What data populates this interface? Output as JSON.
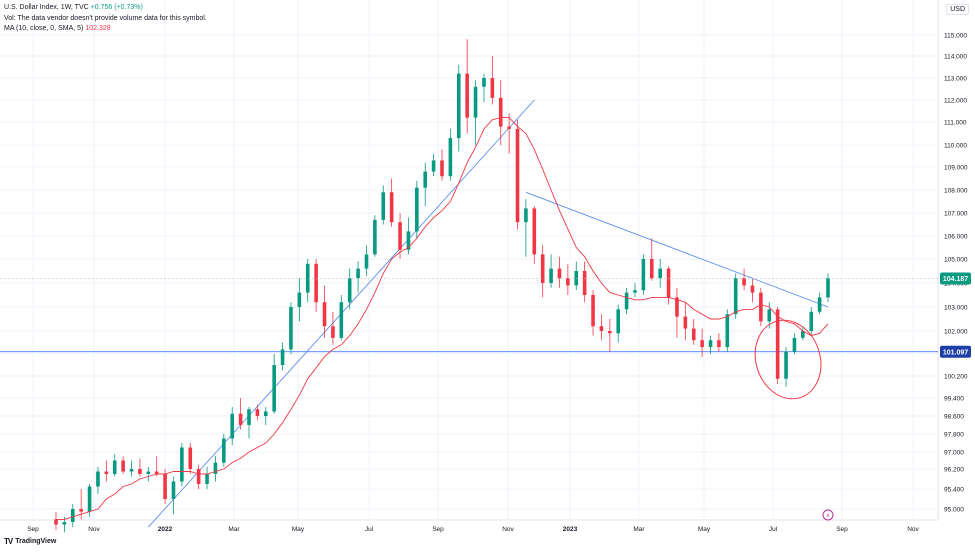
{
  "legend": {
    "symbol_line": "U.S. Dollar Index, 1W, TVC",
    "change": "+0.756 (+0.73%)",
    "vol_line": "Vol: The data vendor doesn't provide volume data for this symbol.",
    "ma_line": "MA (10, close, 0, SMA, 5)",
    "ma_value": "102.328"
  },
  "currency_button": "USD",
  "brand": {
    "logo": "TV",
    "name": "TradingView"
  },
  "colors": {
    "up": "#089981",
    "down": "#f23645",
    "trendline": "#5b8def",
    "ma": "#f23645",
    "hline": "#2962ff",
    "last_price_bg": "#089981",
    "hline_price_bg": "#1e3ea8"
  },
  "price_axis": {
    "ticks": [
      "115.000",
      "114.000",
      "113.000",
      "112.000",
      "111.000",
      "110.000",
      "109.000",
      "108.000",
      "107.000",
      "106.000",
      "105.000",
      "104.000",
      "103.000",
      "102.000",
      "101.000",
      "100.200",
      "99.400",
      "98.600",
      "97.800",
      "97.000",
      "96.200",
      "95.400",
      "95.000"
    ],
    "last_price": "104.187",
    "hline_price": "101.097"
  },
  "time_axis": {
    "labels": [
      "Sep",
      "Nov",
      "2022",
      "Mar",
      "May",
      "Jul",
      "Sep",
      "Nov",
      "2023",
      "Mar",
      "May",
      "Jul",
      "Sep",
      "Nov"
    ]
  },
  "chart_data": {
    "type": "candlestick",
    "title": "U.S. Dollar Index, 1W, TVC",
    "y_axis_label": "USD",
    "candles": [
      {
        "o": 94.6,
        "h": 94.9,
        "l": 94.2,
        "c": 94.4
      },
      {
        "o": 94.4,
        "h": 94.7,
        "l": 94.1,
        "c": 94.5
      },
      {
        "o": 94.5,
        "h": 95.1,
        "l": 94.3,
        "c": 95.0
      },
      {
        "o": 95.0,
        "h": 95.4,
        "l": 94.6,
        "c": 94.9
      },
      {
        "o": 94.9,
        "h": 95.6,
        "l": 94.7,
        "c": 95.5
      },
      {
        "o": 95.5,
        "h": 96.3,
        "l": 95.3,
        "c": 96.1
      },
      {
        "o": 96.1,
        "h": 96.6,
        "l": 95.7,
        "c": 96.0
      },
      {
        "o": 96.0,
        "h": 96.9,
        "l": 95.9,
        "c": 96.6
      },
      {
        "o": 96.6,
        "h": 96.8,
        "l": 96.0,
        "c": 96.1
      },
      {
        "o": 96.1,
        "h": 96.6,
        "l": 95.9,
        "c": 96.2
      },
      {
        "o": 96.2,
        "h": 96.7,
        "l": 95.9,
        "c": 96.0
      },
      {
        "o": 96.0,
        "h": 96.3,
        "l": 95.7,
        "c": 96.1
      },
      {
        "o": 96.1,
        "h": 96.8,
        "l": 95.9,
        "c": 96.0
      },
      {
        "o": 96.0,
        "h": 96.2,
        "l": 95.1,
        "c": 95.2
      },
      {
        "o": 95.2,
        "h": 95.9,
        "l": 94.8,
        "c": 95.7
      },
      {
        "o": 95.7,
        "h": 97.4,
        "l": 95.5,
        "c": 97.2
      },
      {
        "o": 97.2,
        "h": 97.4,
        "l": 96.0,
        "c": 96.2
      },
      {
        "o": 96.2,
        "h": 96.4,
        "l": 95.4,
        "c": 95.6
      },
      {
        "o": 95.6,
        "h": 96.3,
        "l": 95.4,
        "c": 96.0
      },
      {
        "o": 96.0,
        "h": 96.8,
        "l": 95.7,
        "c": 96.5
      },
      {
        "o": 96.5,
        "h": 97.8,
        "l": 96.3,
        "c": 97.6
      },
      {
        "o": 97.6,
        "h": 99.0,
        "l": 97.3,
        "c": 98.7
      },
      {
        "o": 98.7,
        "h": 99.4,
        "l": 98.0,
        "c": 98.2
      },
      {
        "o": 98.2,
        "h": 99.0,
        "l": 97.6,
        "c": 98.9
      },
      {
        "o": 98.9,
        "h": 99.1,
        "l": 98.4,
        "c": 98.6
      },
      {
        "o": 98.6,
        "h": 99.0,
        "l": 98.2,
        "c": 98.8
      },
      {
        "o": 98.8,
        "h": 101.0,
        "l": 98.7,
        "c": 100.6
      },
      {
        "o": 100.6,
        "h": 101.5,
        "l": 100.4,
        "c": 101.2
      },
      {
        "o": 101.2,
        "h": 103.2,
        "l": 101.0,
        "c": 103.0
      },
      {
        "o": 103.0,
        "h": 104.2,
        "l": 102.4,
        "c": 103.6
      },
      {
        "o": 103.6,
        "h": 105.0,
        "l": 103.2,
        "c": 104.8
      },
      {
        "o": 104.8,
        "h": 105.0,
        "l": 102.8,
        "c": 103.2
      },
      {
        "o": 103.2,
        "h": 103.9,
        "l": 101.7,
        "c": 102.2
      },
      {
        "o": 102.2,
        "h": 102.8,
        "l": 101.4,
        "c": 101.7
      },
      {
        "o": 101.7,
        "h": 103.5,
        "l": 101.6,
        "c": 103.2
      },
      {
        "o": 103.2,
        "h": 104.6,
        "l": 102.9,
        "c": 104.2
      },
      {
        "o": 104.2,
        "h": 104.9,
        "l": 103.6,
        "c": 104.6
      },
      {
        "o": 104.6,
        "h": 105.6,
        "l": 104.3,
        "c": 105.2
      },
      {
        "o": 105.2,
        "h": 106.9,
        "l": 105.1,
        "c": 106.7
      },
      {
        "o": 106.7,
        "h": 108.2,
        "l": 106.5,
        "c": 107.9
      },
      {
        "o": 107.9,
        "h": 108.5,
        "l": 106.4,
        "c": 106.6
      },
      {
        "o": 106.6,
        "h": 107.0,
        "l": 105.0,
        "c": 105.4
      },
      {
        "o": 105.4,
        "h": 106.8,
        "l": 105.2,
        "c": 106.2
      },
      {
        "o": 106.2,
        "h": 108.4,
        "l": 105.9,
        "c": 108.1
      },
      {
        "o": 108.1,
        "h": 109.2,
        "l": 107.3,
        "c": 108.8
      },
      {
        "o": 108.8,
        "h": 109.6,
        "l": 108.6,
        "c": 109.3
      },
      {
        "o": 109.3,
        "h": 109.8,
        "l": 108.4,
        "c": 108.6
      },
      {
        "o": 108.6,
        "h": 110.7,
        "l": 108.4,
        "c": 110.3
      },
      {
        "o": 110.3,
        "h": 113.6,
        "l": 109.7,
        "c": 113.2
      },
      {
        "o": 113.2,
        "h": 114.8,
        "l": 110.5,
        "c": 111.2
      },
      {
        "o": 111.2,
        "h": 112.9,
        "l": 110.0,
        "c": 112.6
      },
      {
        "o": 112.6,
        "h": 113.2,
        "l": 111.9,
        "c": 113.0
      },
      {
        "o": 113.0,
        "h": 114.0,
        "l": 111.8,
        "c": 112.1
      },
      {
        "o": 112.1,
        "h": 112.9,
        "l": 110.0,
        "c": 110.8
      },
      {
        "o": 110.8,
        "h": 111.4,
        "l": 109.6,
        "c": 110.7
      },
      {
        "o": 110.7,
        "h": 111.1,
        "l": 106.3,
        "c": 106.6
      },
      {
        "o": 106.6,
        "h": 107.6,
        "l": 105.1,
        "c": 107.2
      },
      {
        "o": 107.2,
        "h": 107.3,
        "l": 104.8,
        "c": 105.2
      },
      {
        "o": 105.2,
        "h": 105.6,
        "l": 103.4,
        "c": 104.0
      },
      {
        "o": 104.0,
        "h": 105.2,
        "l": 103.8,
        "c": 104.6
      },
      {
        "o": 104.6,
        "h": 105.1,
        "l": 103.8,
        "c": 104.2
      },
      {
        "o": 104.2,
        "h": 104.8,
        "l": 103.5,
        "c": 103.9
      },
      {
        "o": 103.9,
        "h": 104.9,
        "l": 103.7,
        "c": 104.5
      },
      {
        "o": 104.5,
        "h": 104.9,
        "l": 103.2,
        "c": 103.5
      },
      {
        "o": 103.5,
        "h": 103.7,
        "l": 101.8,
        "c": 102.2
      },
      {
        "o": 102.2,
        "h": 102.7,
        "l": 101.6,
        "c": 102.0
      },
      {
        "o": 102.0,
        "h": 102.5,
        "l": 101.1,
        "c": 101.9
      },
      {
        "o": 101.9,
        "h": 103.1,
        "l": 101.5,
        "c": 102.9
      },
      {
        "o": 102.9,
        "h": 103.8,
        "l": 102.7,
        "c": 103.6
      },
      {
        "o": 103.6,
        "h": 104.0,
        "l": 103.4,
        "c": 103.7
      },
      {
        "o": 103.7,
        "h": 105.2,
        "l": 103.5,
        "c": 105.0
      },
      {
        "o": 105.0,
        "h": 105.9,
        "l": 104.1,
        "c": 104.2
      },
      {
        "o": 104.2,
        "h": 105.0,
        "l": 103.8,
        "c": 104.6
      },
      {
        "o": 104.6,
        "h": 104.7,
        "l": 103.1,
        "c": 103.4
      },
      {
        "o": 103.4,
        "h": 103.8,
        "l": 101.7,
        "c": 102.6
      },
      {
        "o": 102.6,
        "h": 103.2,
        "l": 101.6,
        "c": 102.1
      },
      {
        "o": 102.1,
        "h": 102.5,
        "l": 101.4,
        "c": 101.6
      },
      {
        "o": 101.6,
        "h": 102.1,
        "l": 100.9,
        "c": 101.3
      },
      {
        "o": 101.3,
        "h": 101.8,
        "l": 101.0,
        "c": 101.6
      },
      {
        "o": 101.6,
        "h": 101.9,
        "l": 101.1,
        "c": 101.3
      },
      {
        "o": 101.3,
        "h": 102.9,
        "l": 101.1,
        "c": 102.7
      },
      {
        "o": 102.7,
        "h": 104.4,
        "l": 102.5,
        "c": 104.2
      },
      {
        "o": 104.2,
        "h": 104.6,
        "l": 103.7,
        "c": 103.9
      },
      {
        "o": 103.9,
        "h": 104.2,
        "l": 103.2,
        "c": 103.6
      },
      {
        "o": 103.6,
        "h": 103.8,
        "l": 102.2,
        "c": 102.4
      },
      {
        "o": 102.4,
        "h": 103.2,
        "l": 102.1,
        "c": 102.9
      },
      {
        "o": 102.9,
        "h": 103.0,
        "l": 99.9,
        "c": 100.1
      },
      {
        "o": 100.1,
        "h": 101.3,
        "l": 99.8,
        "c": 101.1
      },
      {
        "o": 101.1,
        "h": 101.9,
        "l": 101.0,
        "c": 101.7
      },
      {
        "o": 101.7,
        "h": 102.2,
        "l": 101.6,
        "c": 102.0
      },
      {
        "o": 102.0,
        "h": 103.0,
        "l": 101.8,
        "c": 102.8
      },
      {
        "o": 102.8,
        "h": 103.6,
        "l": 102.7,
        "c": 103.4
      },
      {
        "o": 103.4,
        "h": 104.4,
        "l": 103.2,
        "c": 104.2
      }
    ],
    "moving_average_10_sma": [
      94.6,
      94.6,
      94.7,
      94.8,
      94.9,
      95.0,
      95.2,
      95.3,
      95.5,
      95.6,
      95.8,
      95.9,
      96.0,
      96.0,
      96.1,
      96.1,
      96.1,
      96.0,
      96.0,
      96.1,
      96.2,
      96.5,
      96.7,
      97.0,
      97.2,
      97.4,
      97.8,
      98.3,
      98.9,
      99.5,
      100.1,
      100.5,
      100.9,
      101.2,
      101.4,
      101.8,
      102.3,
      102.9,
      103.6,
      104.4,
      105.0,
      105.3,
      105.5,
      105.9,
      106.4,
      106.8,
      107.1,
      107.5,
      108.3,
      109.2,
      109.9,
      110.7,
      111.1,
      111.2,
      111.2,
      110.8,
      110.5,
      109.8,
      108.9,
      108.0,
      107.1,
      106.3,
      105.5,
      105.1,
      104.5,
      104.0,
      103.6,
      103.5,
      103.4,
      103.3,
      103.3,
      103.4,
      103.4,
      103.4,
      103.3,
      103.2,
      102.9,
      102.7,
      102.5,
      102.5,
      102.6,
      102.8,
      102.9,
      102.9,
      103.1,
      103.0,
      102.6,
      102.4,
      102.3,
      102.0,
      101.8,
      101.9,
      102.3
    ],
    "annotations": {
      "horizontal_line_price": 101.097,
      "last_price": 104.187,
      "rising_trendline": "from 2022 low to Oct 2022 area",
      "falling_trendline": "from Nov 2022 lower high through Jul 2023 highs",
      "circled_zone": "Jul 2023 low"
    }
  }
}
